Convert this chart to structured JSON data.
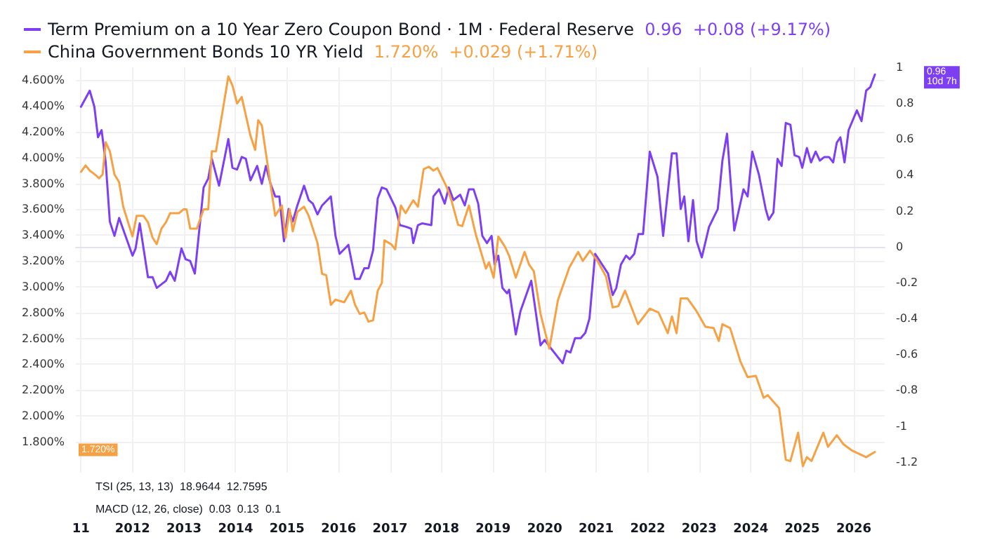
{
  "chart_data": {
    "type": "line",
    "marker": "none",
    "line_style": "solid",
    "grid": true,
    "legend": "top left",
    "annotations": [
      "0.96  +0.08 (+9.17%)",
      "1.720%  +0.029 (+1.71%)",
      "TSI (25, 13, 13)  18.9644  12.7595",
      "MACD (12, 26, close)  0.03  0.13  0.1",
      "0.96\n10d 7h",
      "1.720%"
    ],
    "xlim": [
      2010.9,
      2026.6
    ],
    "xticks": [
      {
        "value": 2011,
        "label": "11"
      },
      2012,
      2013,
      2014,
      2015,
      2016,
      2017,
      2018,
      2019,
      2020,
      2021,
      2022,
      2023,
      2024,
      2025,
      2026
    ],
    "ylim": [
      1.56,
      4.7
    ],
    "yticks": [
      {
        "value": 1.8,
        "label": "1.800%"
      },
      {
        "value": 2.0,
        "label": "2.000%"
      },
      {
        "value": 2.2,
        "label": "2.200%"
      },
      {
        "value": 2.4,
        "label": "2.400%"
      },
      {
        "value": 2.6,
        "label": "2.600%"
      },
      {
        "value": 2.8,
        "label": "2.800%"
      },
      {
        "value": 3.0,
        "label": "3.000%"
      },
      {
        "value": 3.2,
        "label": "3.200%"
      },
      {
        "value": 3.4,
        "label": "3.400%"
      },
      {
        "value": 3.6,
        "label": "3.600%"
      },
      {
        "value": 3.8,
        "label": "3.800%"
      },
      {
        "value": 4.0,
        "label": "4.000%"
      },
      {
        "value": 4.2,
        "label": "4.200%"
      },
      {
        "value": 4.4,
        "label": "4.400%"
      },
      {
        "value": 4.6,
        "label": "4.600%"
      }
    ],
    "y2lim": [
      -1.26,
      1.0
    ],
    "y2ticks": [
      -1.2,
      -1,
      -0.8,
      -0.6,
      -0.4,
      -0.2,
      0,
      0.2,
      0.4,
      0.6,
      0.8,
      1
    ],
    "series": [
      {
        "name": "Term Premium on a 10 Year Zero Coupon Bond · 1M · Federal Reserve",
        "color": "#7e3ff2",
        "axis": "y2",
        "x": [
          2011.0,
          2011.17,
          2011.26,
          2011.33,
          2011.4,
          2011.48,
          2011.56,
          2011.65,
          2011.74,
          2012.0,
          2012.06,
          2012.14,
          2012.3,
          2012.39,
          2012.47,
          2012.65,
          2012.73,
          2012.82,
          2012.95,
          2013.03,
          2013.12,
          2013.21,
          2013.38,
          2013.47,
          2013.54,
          2013.68,
          2013.86,
          2013.94,
          2014.03,
          2014.12,
          2014.2,
          2014.29,
          2014.42,
          2014.51,
          2014.59,
          2014.68,
          2014.77,
          2014.85,
          2014.94,
          2015.03,
          2015.11,
          2015.2,
          2015.33,
          2015.42,
          2015.5,
          2015.59,
          2015.68,
          2015.85,
          2015.94,
          2016.02,
          2016.19,
          2016.32,
          2016.41,
          2016.5,
          2016.58,
          2016.67,
          2016.76,
          2016.84,
          2016.93,
          2017.1,
          2017.19,
          2017.32,
          2017.41,
          2017.45,
          2017.54,
          2017.62,
          2017.8,
          2017.84,
          2017.95,
          2018.06,
          2018.14,
          2018.23,
          2018.36,
          2018.45,
          2018.53,
          2018.62,
          2018.71,
          2018.79,
          2018.88,
          2018.97,
          2019.03,
          2019.1,
          2019.18,
          2019.27,
          2019.31,
          2019.44,
          2019.53,
          2019.74,
          2019.92,
          2020.0,
          2020.13,
          2020.35,
          2020.42,
          2020.5,
          2020.59,
          2020.7,
          2020.79,
          2020.87,
          2020.98,
          2021.23,
          2021.32,
          2021.39,
          2021.48,
          2021.58,
          2021.65,
          2021.74,
          2021.82,
          2021.91,
          2022.04,
          2022.19,
          2022.3,
          2022.47,
          2022.56,
          2022.64,
          2022.71,
          2022.79,
          2022.88,
          2022.95,
          2023.05,
          2023.19,
          2023.36,
          2023.45,
          2023.54,
          2023.68,
          2023.86,
          2023.94,
          2024.03,
          2024.16,
          2024.29,
          2024.35,
          2024.44,
          2024.52,
          2024.6,
          2024.68,
          2024.77,
          2024.85,
          2024.94,
          2025.0,
          2025.09,
          2025.17,
          2025.26,
          2025.34,
          2025.43,
          2025.52,
          2025.6,
          2025.67,
          2025.74,
          2025.82,
          2025.9,
          2026.06,
          2026.15,
          2026.24,
          2026.32,
          2026.41
        ],
        "values": [
          0.78,
          0.87,
          0.78,
          0.61,
          0.65,
          0.47,
          0.14,
          0.06,
          0.16,
          -0.05,
          -0.01,
          0.13,
          -0.17,
          -0.17,
          -0.23,
          -0.19,
          -0.14,
          -0.19,
          -0.01,
          -0.07,
          -0.08,
          -0.15,
          0.33,
          0.38,
          0.49,
          0.34,
          0.6,
          0.44,
          0.43,
          0.5,
          0.49,
          0.37,
          0.45,
          0.35,
          0.45,
          0.35,
          0.28,
          0.28,
          0.03,
          0.21,
          0.14,
          0.23,
          0.34,
          0.26,
          0.24,
          0.18,
          0.23,
          0.28,
          0.06,
          -0.04,
          0.01,
          -0.18,
          -0.18,
          -0.12,
          -0.12,
          -0.02,
          0.27,
          0.33,
          0.32,
          0.22,
          0.12,
          0.11,
          0.1,
          0.02,
          0.12,
          0.13,
          0.12,
          0.28,
          0.32,
          0.24,
          0.33,
          0.26,
          0.29,
          0.23,
          0.32,
          0.32,
          0.24,
          0.06,
          0.02,
          0.06,
          -0.1,
          -0.05,
          -0.23,
          -0.26,
          -0.24,
          -0.49,
          -0.36,
          -0.19,
          -0.55,
          -0.52,
          -0.57,
          -0.65,
          -0.58,
          -0.59,
          -0.51,
          -0.51,
          -0.48,
          -0.4,
          -0.04,
          -0.15,
          -0.27,
          -0.23,
          -0.1,
          -0.05,
          -0.07,
          -0.04,
          0.07,
          0.07,
          0.53,
          0.39,
          0.06,
          0.52,
          0.52,
          0.21,
          0.28,
          0.03,
          0.26,
          0.03,
          -0.06,
          0.11,
          0.21,
          0.48,
          0.63,
          0.09,
          0.32,
          0.28,
          0.53,
          0.4,
          0.21,
          0.15,
          0.19,
          0.49,
          0.45,
          0.69,
          0.68,
          0.51,
          0.5,
          0.44,
          0.55,
          0.47,
          0.53,
          0.48,
          0.5,
          0.5,
          0.47,
          0.58,
          0.61,
          0.47,
          0.65,
          0.76,
          0.7,
          0.87,
          0.89,
          0.96
        ]
      },
      {
        "name": "China Government Bonds 10 YR Yield",
        "color": "#f7a145",
        "x": [
          2011.0,
          2011.09,
          2011.17,
          2011.3,
          2011.35,
          2011.42,
          2011.48,
          2011.56,
          2011.65,
          2011.74,
          2011.82,
          2012.0,
          2012.08,
          2012.21,
          2012.3,
          2012.39,
          2012.47,
          2012.56,
          2012.65,
          2012.73,
          2012.9,
          2012.99,
          2013.05,
          2013.12,
          2013.25,
          2013.38,
          2013.47,
          2013.54,
          2013.62,
          2013.86,
          2013.94,
          2014.03,
          2014.12,
          2014.29,
          2014.38,
          2014.44,
          2014.51,
          2014.68,
          2014.77,
          2014.9,
          2014.97,
          2015.05,
          2015.11,
          2015.2,
          2015.33,
          2015.42,
          2015.59,
          2015.68,
          2015.76,
          2015.85,
          2015.94,
          2016.11,
          2016.24,
          2016.32,
          2016.41,
          2016.5,
          2016.58,
          2016.67,
          2016.76,
          2016.84,
          2016.89,
          2017.02,
          2017.1,
          2017.21,
          2017.3,
          2017.45,
          2017.54,
          2017.65,
          2017.75,
          2017.84,
          2017.92,
          2018.1,
          2018.19,
          2018.32,
          2018.4,
          2018.53,
          2018.66,
          2018.86,
          2018.92,
          2019.01,
          2019.1,
          2019.23,
          2019.31,
          2019.44,
          2019.61,
          2019.7,
          2019.79,
          2019.92,
          2020.09,
          2020.26,
          2020.48,
          2020.65,
          2020.74,
          2020.88,
          2021.04,
          2021.19,
          2021.32,
          2021.43,
          2021.56,
          2021.81,
          2022.04,
          2022.21,
          2022.39,
          2022.47,
          2022.56,
          2022.64,
          2022.77,
          2022.95,
          2023.12,
          2023.28,
          2023.38,
          2023.45,
          2023.6,
          2023.8,
          2023.94,
          2024.1,
          2024.25,
          2024.33,
          2024.55,
          2024.68,
          2024.77,
          2024.92,
          2025.01,
          2025.09,
          2025.18,
          2025.41,
          2025.5,
          2025.67,
          2025.8,
          2025.97,
          2026.24,
          2026.41
        ],
        "values": [
          3.89,
          3.94,
          3.9,
          3.86,
          3.84,
          3.87,
          4.12,
          4.05,
          3.87,
          3.81,
          3.62,
          3.39,
          3.55,
          3.55,
          3.5,
          3.38,
          3.33,
          3.45,
          3.5,
          3.57,
          3.57,
          3.6,
          3.6,
          3.45,
          3.45,
          3.6,
          3.6,
          4.05,
          4.05,
          4.63,
          4.56,
          4.42,
          4.47,
          4.17,
          4.06,
          4.29,
          4.25,
          3.79,
          3.55,
          3.63,
          3.38,
          3.6,
          3.43,
          3.58,
          3.62,
          3.55,
          3.34,
          3.1,
          3.09,
          2.86,
          2.9,
          2.88,
          2.97,
          2.86,
          2.79,
          2.8,
          2.73,
          2.74,
          2.97,
          3.03,
          3.36,
          3.33,
          3.29,
          3.63,
          3.57,
          3.67,
          3.62,
          3.91,
          3.93,
          3.9,
          3.92,
          3.77,
          3.67,
          3.48,
          3.47,
          3.63,
          3.41,
          3.14,
          3.19,
          3.07,
          3.39,
          3.31,
          3.24,
          3.07,
          3.27,
          3.17,
          3.12,
          2.79,
          2.52,
          2.9,
          3.15,
          3.27,
          3.2,
          3.28,
          3.19,
          3.08,
          2.84,
          2.85,
          2.97,
          2.71,
          2.83,
          2.8,
          2.64,
          2.77,
          2.64,
          2.91,
          2.91,
          2.81,
          2.69,
          2.68,
          2.58,
          2.71,
          2.68,
          2.42,
          2.3,
          2.31,
          2.14,
          2.16,
          2.06,
          1.66,
          1.65,
          1.87,
          1.61,
          1.68,
          1.65,
          1.87,
          1.76,
          1.85,
          1.78,
          1.73,
          1.68,
          1.72
        ]
      }
    ]
  }
}
